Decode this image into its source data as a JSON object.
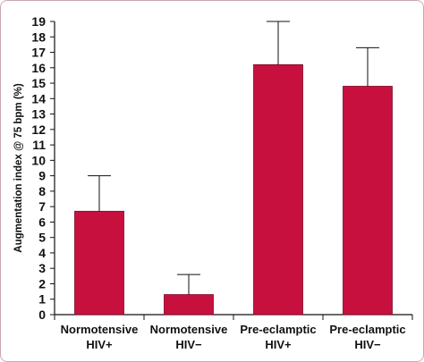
{
  "chart_data": {
    "type": "bar",
    "title": "",
    "xlabel": "",
    "ylabel": "Augmentation index @ 75 bpm (%)",
    "ylim": [
      0,
      19
    ],
    "yticks": [
      0,
      1,
      2,
      3,
      4,
      5,
      6,
      7,
      8,
      9,
      10,
      11,
      12,
      13,
      14,
      15,
      16,
      17,
      18,
      19
    ],
    "categories": [
      {
        "line1": "Normotensive",
        "line2": "HIV+"
      },
      {
        "line1": "Normotensive",
        "line2": "HIV−"
      },
      {
        "line1": "Pre-eclamptic",
        "line2": "HIV+"
      },
      {
        "line1": "Pre-eclamptic",
        "line2": "HIV−"
      }
    ],
    "values": [
      6.7,
      1.3,
      16.2,
      14.8
    ],
    "error_upper": [
      9.0,
      2.6,
      19.0,
      17.3
    ],
    "grid": false,
    "colors": {
      "bar": "#c8103e",
      "axis": "#111111",
      "frame": "#c9a7b2"
    }
  }
}
